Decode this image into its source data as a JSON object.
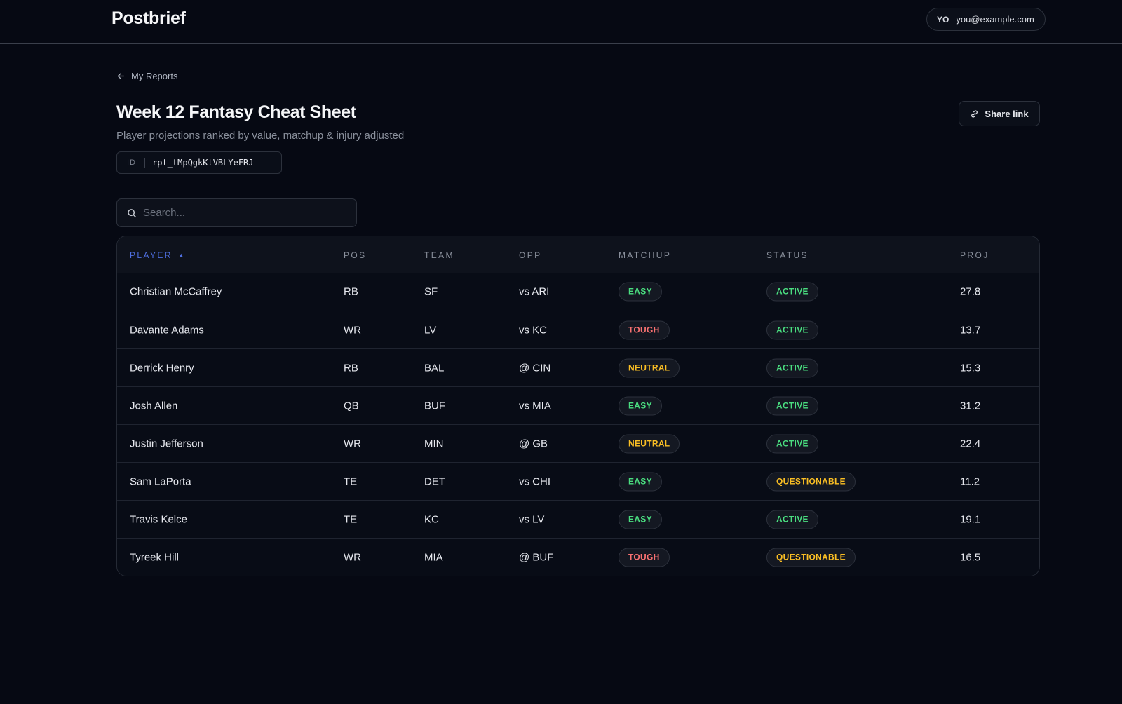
{
  "app": {
    "brand": "Postbrief"
  },
  "user": {
    "initials": "YO",
    "email": "you@example.com"
  },
  "nav": {
    "back_label": "My Reports"
  },
  "report": {
    "title": "Week 12 Fantasy Cheat Sheet",
    "subtitle": "Player projections ranked by value, matchup & injury adjusted",
    "id_label": "ID",
    "id_value": "rpt_tMpQgkKtVBLYeFRJ",
    "share_label": "Share link"
  },
  "search": {
    "placeholder": "Search..."
  },
  "table": {
    "columns": [
      "PLAYER",
      "POS",
      "TEAM",
      "OPP",
      "MATCHUP",
      "STATUS",
      "PROJ"
    ],
    "sort": {
      "column": "PLAYER",
      "direction": "ascending",
      "indicator": "▲"
    },
    "rows": [
      {
        "player": "Christian McCaffrey",
        "pos": "RB",
        "team": "SF",
        "opp": "vs ARI",
        "matchup": "EASY",
        "status": "ACTIVE",
        "proj": "27.8"
      },
      {
        "player": "Davante Adams",
        "pos": "WR",
        "team": "LV",
        "opp": "vs KC",
        "matchup": "TOUGH",
        "status": "ACTIVE",
        "proj": "13.7"
      },
      {
        "player": "Derrick Henry",
        "pos": "RB",
        "team": "BAL",
        "opp": "@ CIN",
        "matchup": "NEUTRAL",
        "status": "ACTIVE",
        "proj": "15.3"
      },
      {
        "player": "Josh Allen",
        "pos": "QB",
        "team": "BUF",
        "opp": "vs MIA",
        "matchup": "EASY",
        "status": "ACTIVE",
        "proj": "31.2"
      },
      {
        "player": "Justin Jefferson",
        "pos": "WR",
        "team": "MIN",
        "opp": "@ GB",
        "matchup": "NEUTRAL",
        "status": "ACTIVE",
        "proj": "22.4"
      },
      {
        "player": "Sam LaPorta",
        "pos": "TE",
        "team": "DET",
        "opp": "vs CHI",
        "matchup": "EASY",
        "status": "QUESTIONABLE",
        "proj": "11.2"
      },
      {
        "player": "Travis Kelce",
        "pos": "TE",
        "team": "KC",
        "opp": "vs LV",
        "matchup": "EASY",
        "status": "ACTIVE",
        "proj": "19.1"
      },
      {
        "player": "Tyreek Hill",
        "pos": "WR",
        "team": "MIA",
        "opp": "@ BUF",
        "matchup": "TOUGH",
        "status": "QUESTIONABLE",
        "proj": "16.5"
      }
    ]
  },
  "badge_colors": {
    "EASY": "#4ade80",
    "TOUGH": "#f87171",
    "NEUTRAL": "#fbbf24",
    "ACTIVE": "#4ade80",
    "QUESTIONABLE": "#fbbf24"
  },
  "theme": {
    "background": "#060913",
    "accent": "#4f6fe0"
  }
}
